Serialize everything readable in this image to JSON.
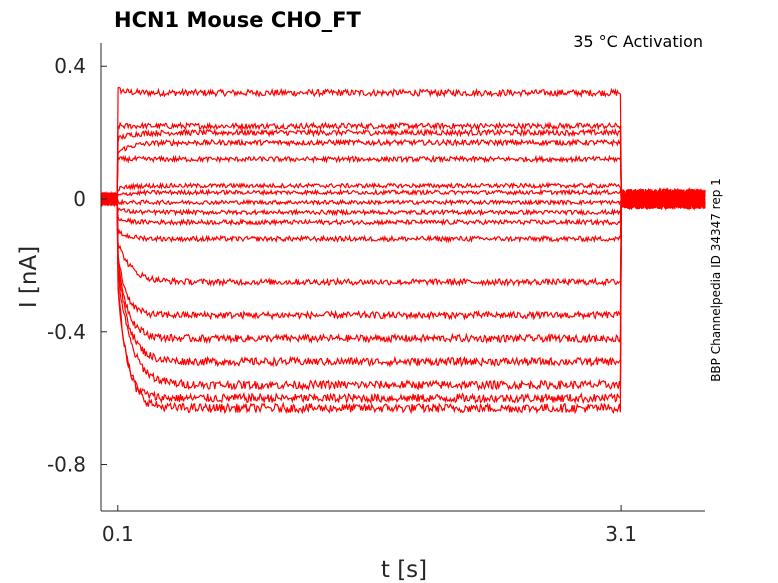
{
  "chart_data": {
    "type": "line",
    "title": "HCN1  Mouse  CHO_FT",
    "annotation": "35 °C  Activation",
    "side_label": "BBP Channelpedia ID 34347 rep 1",
    "xlabel": "t [s]",
    "ylabel": "I [nA]",
    "xlim": [
      0.0,
      3.6
    ],
    "ylim": [
      -0.94,
      0.47
    ],
    "xticks": [
      {
        "value": 0.1,
        "label": "0.1"
      },
      {
        "value": 3.1,
        "label": "3.1"
      }
    ],
    "yticks": [
      {
        "value": 0.4,
        "label": "0.4"
      },
      {
        "value": 0.0,
        "label": "0"
      },
      {
        "value": -0.4,
        "label": "-0.4"
      },
      {
        "value": -0.8,
        "label": "-0.8"
      }
    ],
    "grid": false,
    "line_color": "#ff0000",
    "pulse": {
      "start": 0.1,
      "end": 3.1
    },
    "series": [
      {
        "initial": 0.33,
        "steady": 0.32
      },
      {
        "initial": 0.22,
        "steady": 0.22
      },
      {
        "initial": 0.18,
        "steady": 0.2
      },
      {
        "initial": 0.14,
        "steady": 0.17
      },
      {
        "initial": 0.12,
        "steady": 0.12
      },
      {
        "initial": 0.03,
        "steady": 0.04
      },
      {
        "initial": 0.01,
        "steady": 0.02
      },
      {
        "initial": -0.01,
        "steady": -0.01
      },
      {
        "initial": -0.03,
        "steady": -0.04
      },
      {
        "initial": -0.06,
        "steady": -0.07
      },
      {
        "initial": -0.1,
        "steady": -0.12
      },
      {
        "initial": -0.13,
        "steady": -0.25
      },
      {
        "initial": -0.16,
        "steady": -0.35
      },
      {
        "initial": -0.18,
        "steady": -0.42
      },
      {
        "initial": -0.2,
        "steady": -0.49
      },
      {
        "initial": -0.22,
        "steady": -0.56
      },
      {
        "initial": -0.24,
        "steady": -0.6
      },
      {
        "initial": -0.26,
        "steady": -0.63
      }
    ]
  }
}
